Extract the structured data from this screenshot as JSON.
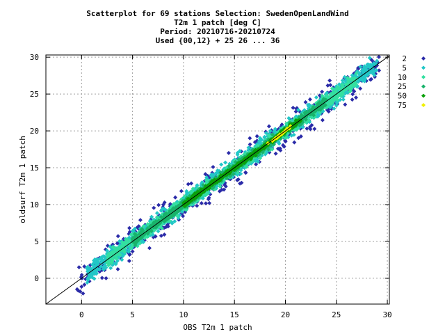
{
  "chart_data": {
    "type": "scatter",
    "title_lines": [
      "Scatterplot for   69 stations Selection: SwedenOpenLandWind",
      "T2m 1 patch [deg C]",
      "Period: 20210716-20210724",
      "Used {00,12} + 25 26 ... 36"
    ],
    "xlabel": "OBS T2m 1 patch",
    "ylabel": "oldsurf T2m 1 patch",
    "xlim": [
      -3.5,
      30.2
    ],
    "ylim": [
      -3.5,
      30.3
    ],
    "xticks": [
      0,
      5,
      10,
      15,
      20,
      25,
      30
    ],
    "yticks": [
      0,
      5,
      10,
      15,
      20,
      25,
      30
    ],
    "grid": true,
    "diagonal_line": true,
    "legend_position": "right",
    "legend": [
      {
        "label": "2",
        "color": "#2b2ba8"
      },
      {
        "label": "5",
        "color": "#22c7c7"
      },
      {
        "label": "10",
        "color": "#33e0a0"
      },
      {
        "label": "25",
        "color": "#19b36b"
      },
      {
        "label": "50",
        "color": "#0aa00a"
      },
      {
        "label": "75",
        "color": "#f0f000"
      }
    ],
    "density_bands": [
      {
        "level": "2",
        "color": "#2b2ba8",
        "halfwidth": 3.2,
        "x_range": [
          -0.5,
          29.5
        ]
      },
      {
        "level": "5",
        "color": "#22c7c7",
        "halfwidth": 2.0,
        "x_range": [
          0.5,
          29.0
        ]
      },
      {
        "level": "10",
        "color": "#33e0a0",
        "halfwidth": 1.4,
        "x_range": [
          2.5,
          27.0
        ]
      },
      {
        "level": "25",
        "color": "#19b36b",
        "halfwidth": 0.9,
        "x_range": [
          5.0,
          24.0
        ]
      },
      {
        "level": "50",
        "color": "#0aa00a",
        "halfwidth": 0.5,
        "x_range": [
          10.0,
          21.5
        ]
      },
      {
        "level": "75",
        "color": "#f0f000",
        "halfwidth": 0.25,
        "x_range": [
          18.2,
          20.5
        ]
      }
    ]
  }
}
